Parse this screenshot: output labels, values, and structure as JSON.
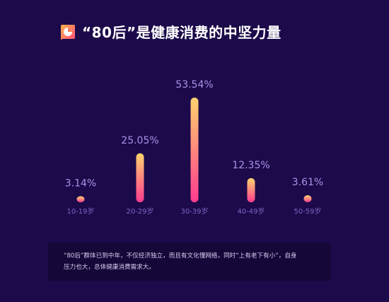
{
  "header": {
    "title": "“80后”是健康消费的中坚力量",
    "icon": "pie-chart-icon"
  },
  "colors": {
    "background": "#1c0a4a",
    "bar_top": "#ffd36e",
    "bar_bottom": "#ff3b8e",
    "value_label": "#a992e8",
    "category_label": "#7c66c4"
  },
  "chart_data": {
    "type": "bar",
    "categories": [
      "10-19岁",
      "20-29岁",
      "30-39岁",
      "40-49岁",
      "50-59岁"
    ],
    "values": [
      3.14,
      25.05,
      53.54,
      12.35,
      3.61
    ],
    "value_labels": [
      "3.14%",
      "25.05%",
      "53.54%",
      "12.35%",
      "3.61%"
    ],
    "title": "",
    "xlabel": "",
    "ylabel": "",
    "grid": false
  },
  "note": {
    "text": "“80后”群体已到中年，不仅经济独立，而且有文化懂网络，同时“上有老下有小”，自身\n压力也大，总体健康消费需求大。"
  }
}
